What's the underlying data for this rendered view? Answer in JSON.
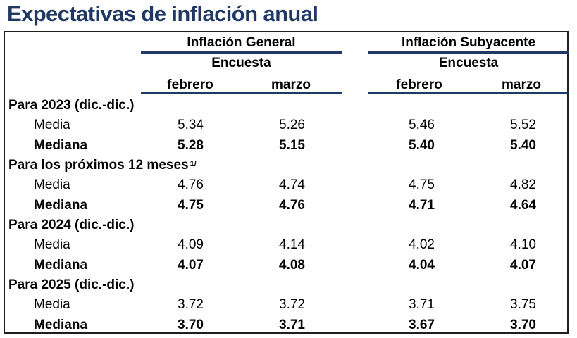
{
  "title": "Expectativas de inflación anual",
  "groups": [
    {
      "label": "Inflación General",
      "sub": "Encuesta",
      "months": [
        "febrero",
        "marzo"
      ]
    },
    {
      "label": "Inflación Subyacente",
      "sub": "Encuesta",
      "months": [
        "febrero",
        "marzo"
      ]
    }
  ],
  "sections": [
    {
      "label": "Para 2023 (dic.-dic.)",
      "sup": "",
      "media": {
        "label": "Media",
        "values": [
          "5.34",
          "5.26",
          "5.46",
          "5.52"
        ]
      },
      "mediana": {
        "label": "Mediana",
        "values": [
          "5.28",
          "5.15",
          "5.40",
          "5.40"
        ]
      }
    },
    {
      "label": "Para los próximos 12 meses",
      "sup": "1/",
      "media": {
        "label": "Media",
        "values": [
          "4.76",
          "4.74",
          "4.75",
          "4.82"
        ]
      },
      "mediana": {
        "label": "Mediana",
        "values": [
          "4.75",
          "4.76",
          "4.71",
          "4.64"
        ]
      }
    },
    {
      "label": "Para 2024 (dic.-dic.)",
      "sup": "",
      "media": {
        "label": "Media",
        "values": [
          "4.09",
          "4.14",
          "4.02",
          "4.10"
        ]
      },
      "mediana": {
        "label": "Mediana",
        "values": [
          "4.07",
          "4.08",
          "4.04",
          "4.07"
        ]
      }
    },
    {
      "label": "Para 2025 (dic.-dic.)",
      "sup": "",
      "media": {
        "label": "Media",
        "values": [
          "3.72",
          "3.72",
          "3.71",
          "3.75"
        ]
      },
      "mediana": {
        "label": "Mediana",
        "values": [
          "3.70",
          "3.71",
          "3.67",
          "3.70"
        ]
      }
    }
  ],
  "colors": {
    "title": "#1f3864",
    "rule": "#1f3864",
    "frame": "#1f1f1f"
  }
}
